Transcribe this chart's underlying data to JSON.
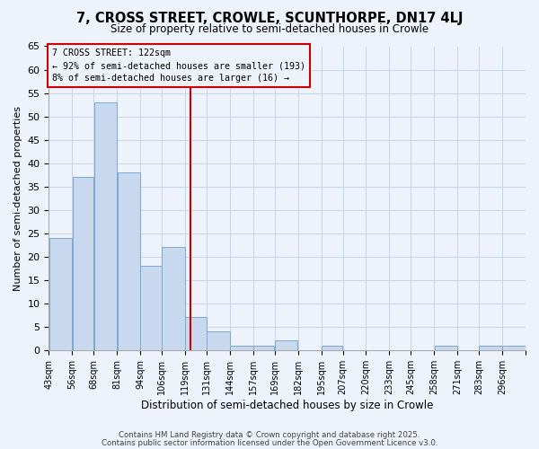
{
  "title": "7, CROSS STREET, CROWLE, SCUNTHORPE, DN17 4LJ",
  "subtitle": "Size of property relative to semi-detached houses in Crowle",
  "xlabel": "Distribution of semi-detached houses by size in Crowle",
  "ylabel": "Number of semi-detached properties",
  "bin_labels": [
    "43sqm",
    "56sqm",
    "68sqm",
    "81sqm",
    "94sqm",
    "106sqm",
    "119sqm",
    "131sqm",
    "144sqm",
    "157sqm",
    "169sqm",
    "182sqm",
    "195sqm",
    "207sqm",
    "220sqm",
    "233sqm",
    "245sqm",
    "258sqm",
    "271sqm",
    "283sqm",
    "296sqm"
  ],
  "bin_left_edges": [
    43,
    56,
    68,
    81,
    94,
    106,
    119,
    131,
    144,
    157,
    169,
    182,
    195,
    207,
    220,
    233,
    245,
    258,
    271,
    283,
    296
  ],
  "bin_widths": [
    13,
    12,
    13,
    13,
    12,
    13,
    12,
    13,
    13,
    12,
    13,
    13,
    12,
    13,
    13,
    12,
    13,
    13,
    12,
    13,
    13
  ],
  "bar_values": [
    24,
    37,
    53,
    38,
    18,
    22,
    7,
    4,
    1,
    1,
    2,
    0,
    1,
    0,
    0,
    0,
    0,
    1,
    0,
    1,
    1
  ],
  "bar_color": "#c8d8ee",
  "bar_edge_color": "#7aaad0",
  "property_size": 122,
  "property_line_color": "#cc0000",
  "annotation_title": "7 CROSS STREET: 122sqm",
  "annotation_line1": "← 92% of semi-detached houses are smaller (193)",
  "annotation_line2": "8% of semi-detached houses are larger (16) →",
  "annotation_box_color": "#cc0000",
  "ylim": [
    0,
    65
  ],
  "yticks": [
    0,
    5,
    10,
    15,
    20,
    25,
    30,
    35,
    40,
    45,
    50,
    55,
    60,
    65
  ],
  "footer1": "Contains HM Land Registry data © Crown copyright and database right 2025.",
  "footer2": "Contains public sector information licensed under the Open Government Licence v3.0.",
  "background_color": "#eef2fa",
  "grid_color": "#c8d4e8"
}
